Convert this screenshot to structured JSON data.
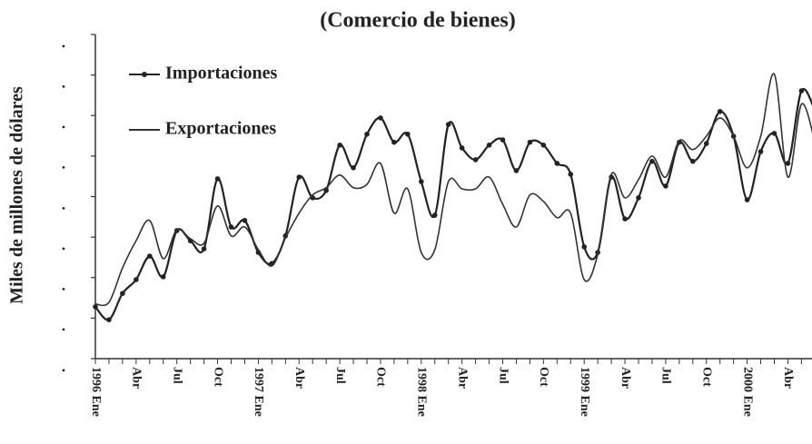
{
  "chart_data": {
    "type": "line",
    "title": "(Comercio de bienes)",
    "y_label": "Miles de millones de dólares",
    "categories": [
      "1996 Ene",
      null,
      null,
      "Abr",
      null,
      null,
      "Jul",
      null,
      null,
      "Oct",
      null,
      null,
      "1997 Ene",
      null,
      null,
      "Abr",
      null,
      null,
      "Jul",
      null,
      null,
      "Oct",
      null,
      null,
      "1998 Ene",
      null,
      null,
      "Abr",
      null,
      null,
      "Jul",
      null,
      null,
      "Oct",
      null,
      null,
      "1999 Ene",
      null,
      null,
      "Abr",
      null,
      null,
      "Jul",
      null,
      null,
      "Oct",
      null,
      null,
      "2000 Ene",
      null,
      null,
      "Abr",
      null,
      null
    ],
    "series": [
      {
        "name": "Importaciones",
        "color": "#222222",
        "marker": "circle",
        "values": [
          1.28,
          0.96,
          1.61,
          1.95,
          2.53,
          2.02,
          3.16,
          2.91,
          2.71,
          4.44,
          3.25,
          3.41,
          2.62,
          2.35,
          3.03,
          4.48,
          3.97,
          4.15,
          5.27,
          4.71,
          5.54,
          5.94,
          5.34,
          5.54,
          4.37,
          3.54,
          5.78,
          5.2,
          4.91,
          5.27,
          5.4,
          4.64,
          5.34,
          5.27,
          4.82,
          4.55,
          2.76,
          2.62,
          4.48,
          3.45,
          3.97,
          4.87,
          4.26,
          5.34,
          4.87,
          5.31,
          6.1,
          5.49,
          3.92,
          5.11,
          5.56,
          4.82,
          6.61,
          6.12
        ]
      },
      {
        "name": "Exportaciones",
        "color": "#333333",
        "marker": "none",
        "values": [
          1.35,
          1.39,
          2.24,
          2.91,
          3.41,
          2.47,
          3.18,
          2.96,
          2.85,
          3.77,
          3.03,
          3.25,
          2.69,
          2.29,
          2.98,
          3.59,
          4.04,
          4.22,
          4.53,
          4.22,
          4.3,
          4.82,
          3.59,
          4.19,
          2.62,
          2.69,
          4.37,
          4.19,
          4.19,
          4.48,
          3.81,
          3.25,
          4.04,
          3.88,
          3.48,
          3.59,
          1.95,
          2.58,
          4.55,
          3.97,
          4.42,
          5.0,
          4.48,
          5.38,
          5.16,
          5.49,
          5.94,
          5.49,
          4.71,
          5.49,
          7.02,
          4.48,
          6.28,
          5.34
        ]
      }
    ],
    "ylim": [
      0,
      8
    ],
    "yticks": [
      {
        "value": 0,
        "label": "•"
      },
      {
        "value": 1,
        "label": "•"
      },
      {
        "value": 2,
        "label": "•"
      },
      {
        "value": 3,
        "label": "•"
      },
      {
        "value": 4,
        "label": "•"
      },
      {
        "value": 5,
        "label": "•"
      },
      {
        "value": 6,
        "label": "•"
      },
      {
        "value": 7,
        "label": "•"
      },
      {
        "value": 8,
        "label": "•"
      }
    ],
    "grid": false,
    "legend": "upper left"
  }
}
